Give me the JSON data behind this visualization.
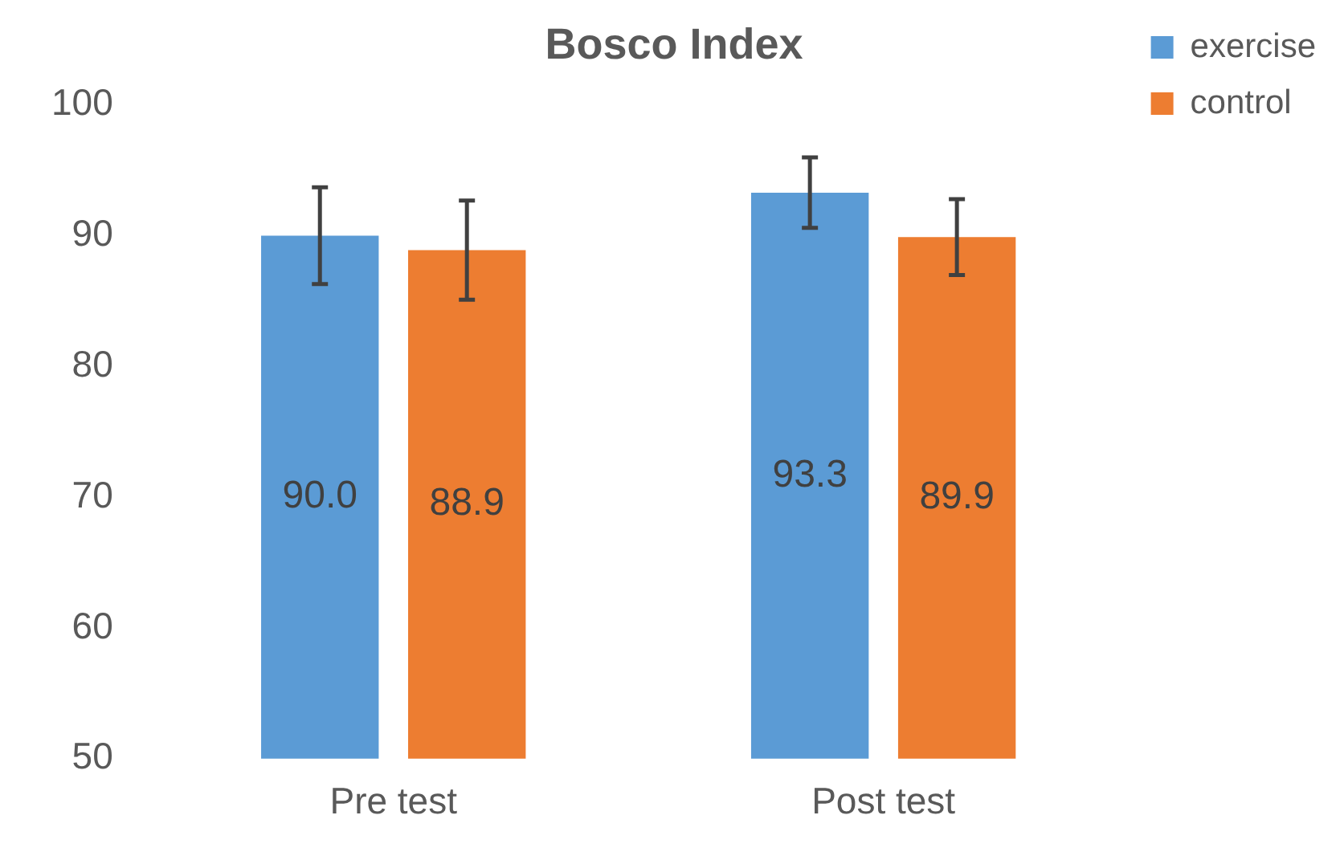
{
  "chart_data": {
    "type": "bar",
    "title": "Bosco Index",
    "categories": [
      "Pre test",
      "Post test"
    ],
    "series": [
      {
        "name": "exercise",
        "color": "#5b9bd5",
        "values": [
          90.0,
          93.3
        ],
        "value_labels": [
          "90.0",
          "93.3"
        ],
        "errors": [
          3.7,
          2.7
        ]
      },
      {
        "name": "control",
        "color": "#ed7d31",
        "values": [
          88.9,
          89.9
        ],
        "value_labels": [
          "88.9",
          "89.9"
        ],
        "errors": [
          3.8,
          2.9
        ]
      }
    ],
    "ylim": [
      50,
      100
    ],
    "yticks": [
      50,
      60,
      70,
      80,
      90,
      100
    ],
    "grid": false,
    "legend": "top right"
  }
}
